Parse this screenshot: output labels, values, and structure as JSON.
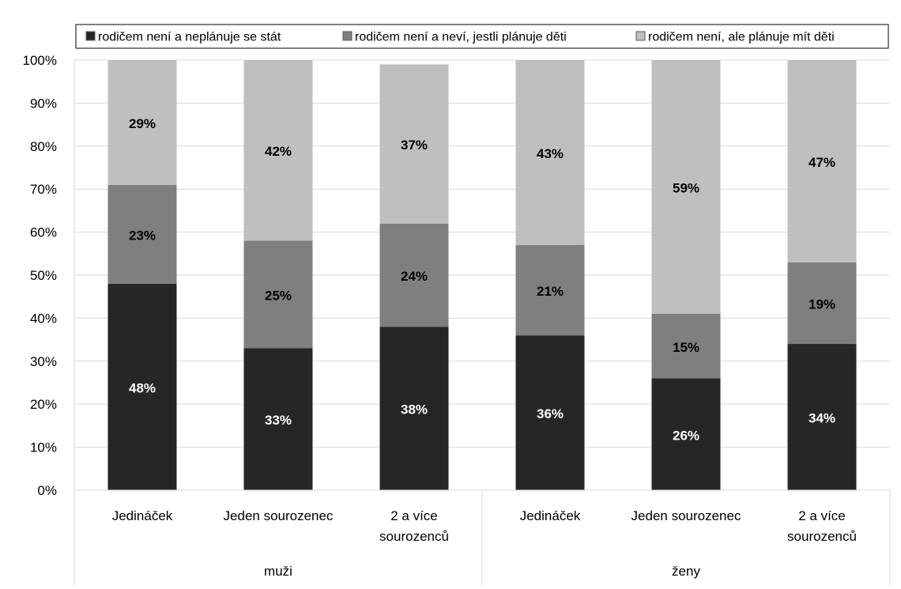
{
  "chart_data": {
    "type": "bar",
    "stacked": true,
    "percent": true,
    "ylim": [
      0,
      100
    ],
    "y_ticks": [
      "0%",
      "10%",
      "20%",
      "30%",
      "40%",
      "50%",
      "60%",
      "70%",
      "80%",
      "90%",
      "100%"
    ],
    "groups": [
      {
        "label": "muži",
        "categories": [
          "Jedináček",
          "Jeden sourozenec",
          "2 a více sourozenců"
        ]
      },
      {
        "label": "ženy",
        "categories": [
          "Jedináček",
          "Jeden sourozenec",
          "2 a více sourozenců"
        ]
      }
    ],
    "categories": [
      "Jedináček",
      "Jeden sourozenec",
      "2 a více sourozenců",
      "Jedináček",
      "Jeden sourozenec",
      "2 a více sourozenců"
    ],
    "series": [
      {
        "name": "rodičem není a neplánuje se stát",
        "color": "#262626",
        "label_color": "#ffffff",
        "values": [
          48,
          33,
          38,
          36,
          26,
          34
        ],
        "labels": [
          "48%",
          "33%",
          "38%",
          "36%",
          "26%",
          "34%"
        ]
      },
      {
        "name": "rodičem není a neví, jestli plánuje děti",
        "color": "#7f7f7f",
        "label_color": "#000000",
        "values": [
          23,
          25,
          24,
          21,
          15,
          19
        ],
        "labels": [
          "23%",
          "25%",
          "24%",
          "21%",
          "15%",
          "19%"
        ]
      },
      {
        "name": "rodičem není, ale plánuje mít děti",
        "color": "#bfbfbf",
        "label_color": "#000000",
        "values": [
          29,
          42,
          37,
          43,
          59,
          47
        ],
        "labels": [
          "29%",
          "42%",
          "37%",
          "43%",
          "59%",
          "47%"
        ]
      }
    ],
    "grid": true,
    "legend_position": "top"
  }
}
